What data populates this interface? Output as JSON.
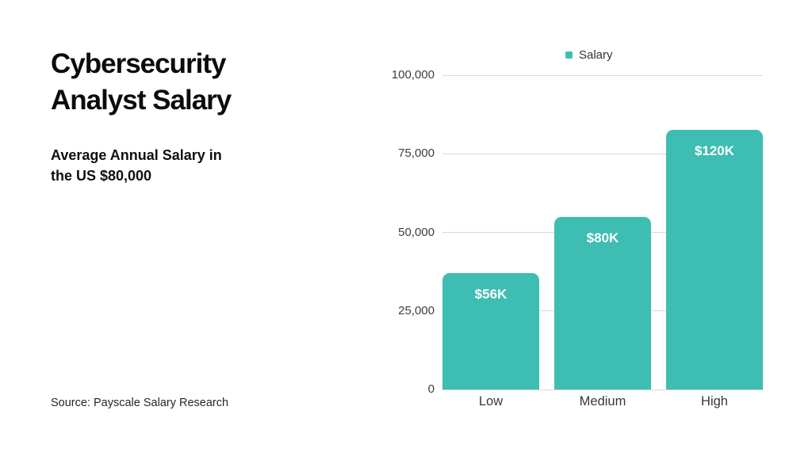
{
  "page": {
    "background": "#ffffff"
  },
  "left_panel": {
    "title_line1": "Cybersecurity",
    "title_line2": "Analyst Salary",
    "subtitle_line1": "Average Annual Salary in",
    "subtitle_line2": "the US $80,000",
    "source": "Source: Payscale Salary Research"
  },
  "chart_data": {
    "type": "bar",
    "series_name": "Salary",
    "categories": [
      "Low",
      "Medium",
      "High"
    ],
    "bar_labels": [
      "$56K",
      "$80K",
      "$120K"
    ],
    "values": [
      56000,
      80000,
      120000
    ],
    "values_as_drawn_on_axis": [
      37000,
      55000,
      82500
    ],
    "ylim": [
      0,
      100000
    ],
    "yticks": [
      0,
      25000,
      50000,
      75000,
      100000
    ],
    "ytick_labels": [
      "0",
      "25,000",
      "50,000",
      "75,000",
      "100,000"
    ],
    "grid": true,
    "legend_position": "top-center",
    "colors": {
      "bar": "#3EBDB2",
      "bar_label_text": "#ffffff",
      "gridline": "#d9d9d9",
      "axis_text": "#3d3d3d"
    }
  }
}
